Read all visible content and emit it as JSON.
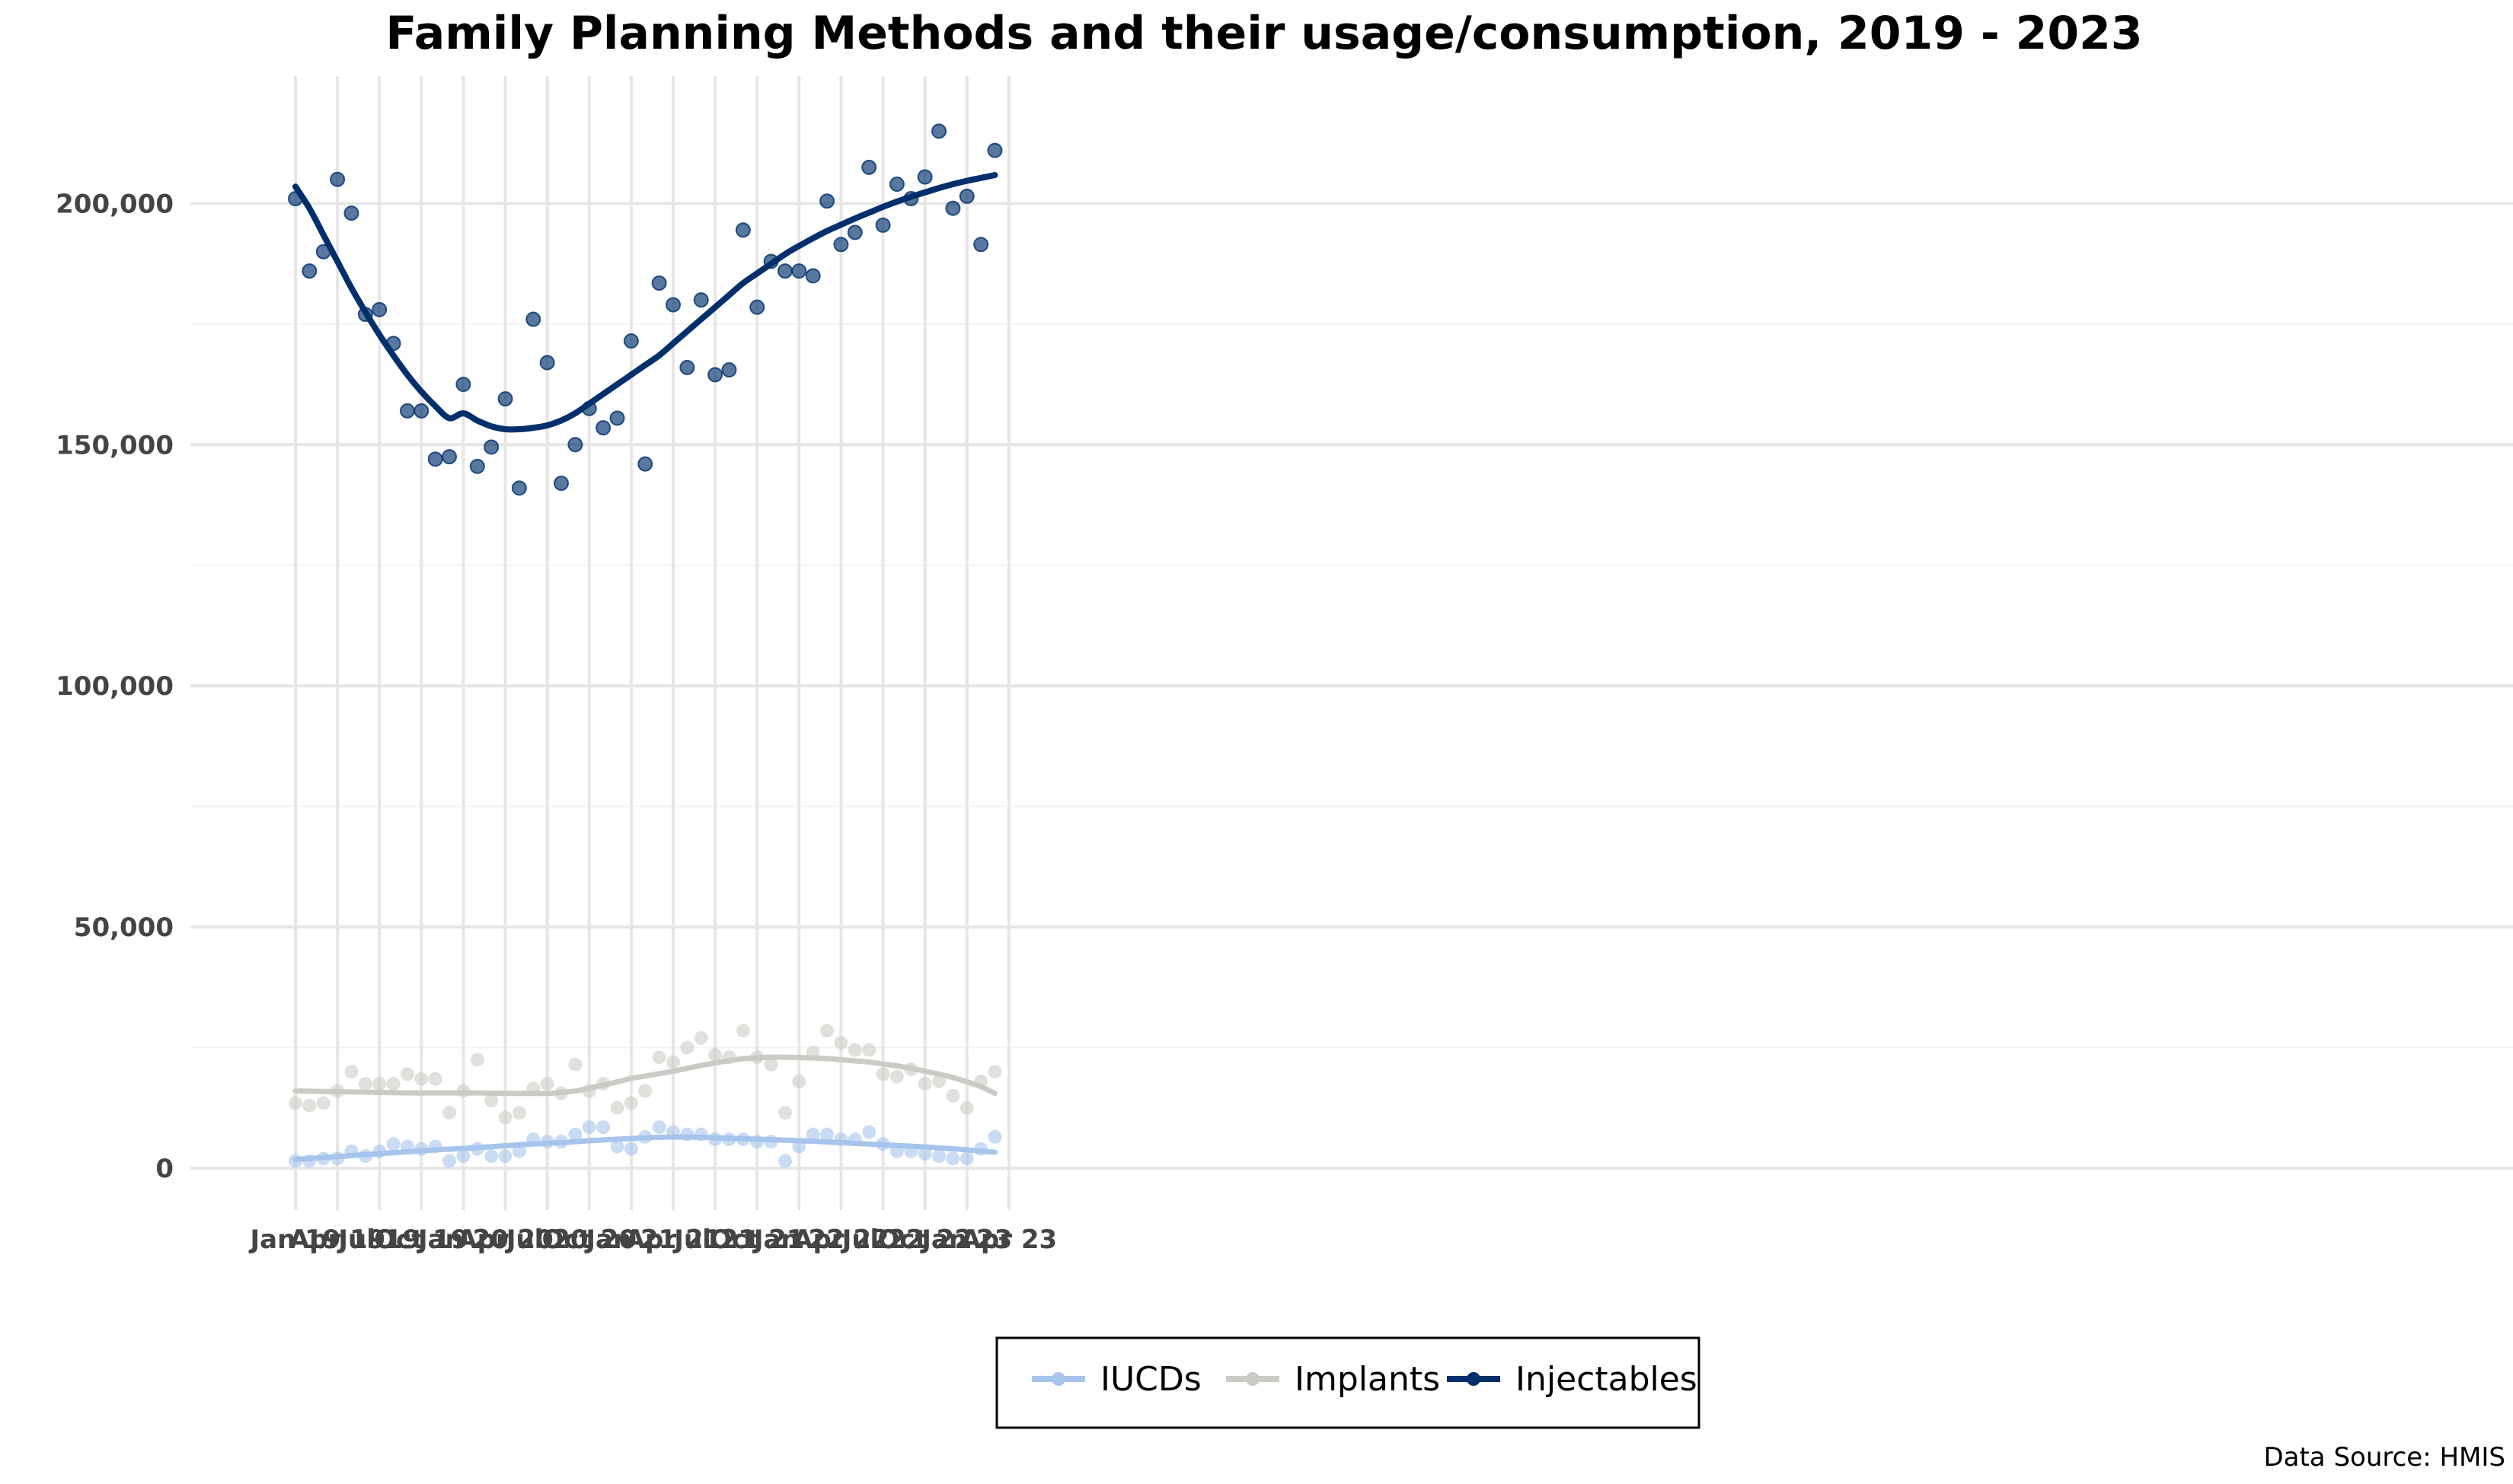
{
  "chart_data": {
    "type": "scatter",
    "title": "Family Planning Methods and their usage/consumption, 2019 - 2023",
    "caption": "Data Source: HMIS",
    "xlabel": "",
    "ylabel": "",
    "x_ticks": [
      "Jan 19",
      "Apr 19",
      "Jul 19",
      "Oct 19",
      "Jan 20",
      "Apr 20",
      "Jul 20",
      "Oct 20",
      "Jan 21",
      "Apr 21",
      "Jul 21",
      "Oct 21",
      "Jan 22",
      "Apr 22",
      "Jul 22",
      "Oct 22",
      "Jan 23",
      "Apr 23"
    ],
    "y_ticks": [
      "0",
      "50,000",
      "100,000",
      "150,000",
      "200,000"
    ],
    "ylim": [
      -10000,
      225000
    ],
    "grid": true,
    "legend_position": "bottom",
    "x": [
      "2019-01",
      "2019-02",
      "2019-03",
      "2019-04",
      "2019-05",
      "2019-06",
      "2019-07",
      "2019-08",
      "2019-09",
      "2019-10",
      "2019-11",
      "2019-12",
      "2020-01",
      "2020-02",
      "2020-03",
      "2020-04",
      "2020-05",
      "2020-06",
      "2020-07",
      "2020-08",
      "2020-09",
      "2020-10",
      "2020-11",
      "2020-12",
      "2021-01",
      "2021-02",
      "2021-03",
      "2021-04",
      "2021-05",
      "2021-06",
      "2021-07",
      "2021-08",
      "2021-09",
      "2021-10",
      "2021-11",
      "2021-12",
      "2022-01",
      "2022-02",
      "2022-03",
      "2022-04",
      "2022-05",
      "2022-06",
      "2022-07",
      "2022-08",
      "2022-09",
      "2022-10",
      "2022-11",
      "2022-12",
      "2023-01",
      "2023-02",
      "2023-03"
    ],
    "series": [
      {
        "name": "IUCDs",
        "color": "#A6C4EC",
        "values": [
          1500,
          1500,
          2000,
          2000,
          3500,
          2500,
          3500,
          5000,
          4500,
          4000,
          4500,
          1500,
          2500,
          4000,
          2500,
          2500,
          3500,
          6000,
          5500,
          5500,
          7000,
          8500,
          8500,
          4500,
          4000,
          6500,
          8500,
          7500,
          7000,
          7000,
          6000,
          6000,
          6000,
          5500,
          5500,
          1500,
          4500,
          7000,
          7000,
          6000,
          6000,
          7500,
          5000,
          3500,
          3500,
          3000,
          2500,
          2000,
          2000,
          4000,
          6500
        ],
        "trend": [
          1800,
          2000,
          2200,
          2400,
          2600,
          2800,
          3000,
          3200,
          3400,
          3600,
          3800,
          3950,
          4100,
          4250,
          4450,
          4650,
          4850,
          5000,
          5150,
          5300,
          5500,
          5700,
          5850,
          6000,
          6150,
          6300,
          6400,
          6450,
          6450,
          6400,
          6300,
          6200,
          6100,
          6000,
          5900,
          5800,
          5700,
          5600,
          5450,
          5300,
          5150,
          5000,
          4850,
          4700,
          4550,
          4400,
          4200,
          4000,
          3800,
          3550,
          3300
        ]
      },
      {
        "name": "Implants",
        "color": "#CBCBC6",
        "values": [
          13500,
          13000,
          13500,
          16000,
          20000,
          17500,
          17500,
          17500,
          19500,
          18500,
          18500,
          11500,
          16000,
          22500,
          14000,
          10500,
          11500,
          16500,
          17500,
          15500,
          21500,
          16000,
          17500,
          12500,
          13500,
          16000,
          23000,
          22000,
          25000,
          27000,
          23500,
          23000,
          28500,
          23000,
          21500,
          11500,
          18000,
          24000,
          28500,
          26000,
          24500,
          24500,
          19500,
          19000,
          20500,
          17500,
          18000,
          15000,
          12500,
          18000,
          20000
        ],
        "trend": [
          16000,
          15950,
          15900,
          15850,
          15800,
          15750,
          15700,
          15650,
          15600,
          15600,
          15600,
          15600,
          15600,
          15600,
          15550,
          15500,
          15500,
          15500,
          15500,
          15700,
          16000,
          16600,
          17200,
          17900,
          18600,
          19100,
          19600,
          20100,
          20700,
          21300,
          21800,
          22300,
          22700,
          22900,
          23000,
          23000,
          22950,
          22850,
          22700,
          22500,
          22250,
          22000,
          21600,
          21200,
          20700,
          20100,
          19500,
          18800,
          17900,
          16900,
          15500
        ]
      },
      {
        "name": "Injectables",
        "color": "#002F6C",
        "values": [
          201000,
          186000,
          190000,
          205000,
          198000,
          177000,
          178000,
          171000,
          157000,
          157000,
          147000,
          147500,
          162500,
          145500,
          149500,
          159500,
          141000,
          176000,
          167000,
          142000,
          150000,
          157500,
          153500,
          155500,
          171500,
          146000,
          183500,
          179000,
          166000,
          180000,
          164500,
          165500,
          194500,
          178500,
          188000,
          186000,
          186000,
          185000,
          200500,
          191500,
          194000,
          207500,
          195500,
          204000,
          201000,
          205500,
          215000,
          199000,
          201500,
          191500,
          211000
        ],
        "trend": [
          203500,
          199000,
          193500,
          188000,
          182500,
          177500,
          172800,
          168500,
          164500,
          161000,
          158000,
          155500,
          156500,
          155000,
          153800,
          153200,
          153200,
          153500,
          154000,
          155000,
          156500,
          158500,
          160500,
          162500,
          164500,
          166500,
          168500,
          171000,
          173500,
          176000,
          178500,
          181000,
          183500,
          185500,
          187500,
          189500,
          191200,
          192800,
          194300,
          195600,
          196900,
          198100,
          199300,
          200400,
          201400,
          202300,
          203200,
          204000,
          204700,
          205300,
          205900
        ]
      }
    ]
  }
}
